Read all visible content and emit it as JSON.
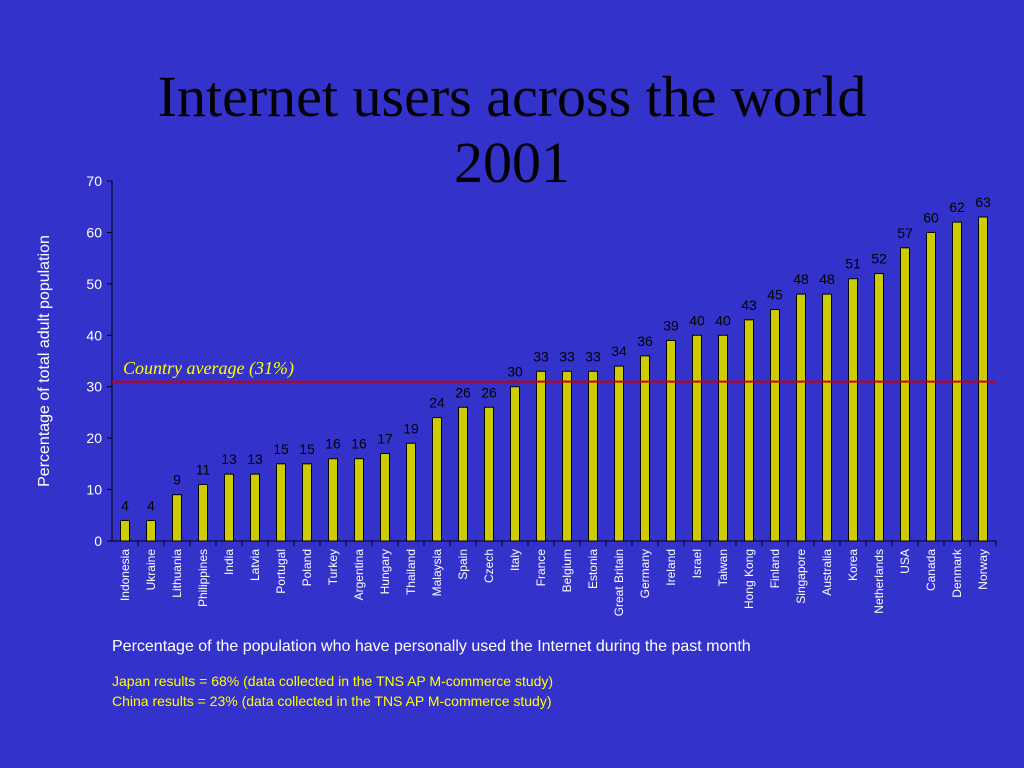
{
  "title": {
    "line1": "Internet users across the world",
    "line2": "2001"
  },
  "colors": {
    "background": "#3333cc",
    "bar": "#cccc00",
    "avg_line": "#cc0000",
    "avg_label": "#ffff00",
    "text": "#ffffff"
  },
  "chart_data": {
    "type": "bar",
    "title": "Internet users across the world 2001",
    "ylabel": "Percentage of total adult population",
    "xlabel": "",
    "ylim": [
      0,
      70
    ],
    "yticks": [
      0,
      10,
      20,
      30,
      40,
      50,
      60,
      70
    ],
    "grid": false,
    "categories": [
      "Indonesia",
      "Ukraine",
      "Lithuania",
      "Philippines",
      "India",
      "Latvia",
      "Portugal",
      "Poland",
      "Turkey",
      "Argentina",
      "Hungary",
      "Thailand",
      "Malaysia",
      "Spain",
      "Czech",
      "Italy",
      "France",
      "Belgium",
      "Estonia",
      "Great Britain",
      "Germany",
      "Ireland",
      "Israel",
      "Taiwan",
      "Hong Kong",
      "Finland",
      "Singapore",
      "Australia",
      "Korea",
      "Netherlands",
      "USA",
      "Canada",
      "Denmark",
      "Norway"
    ],
    "values": [
      4,
      4,
      9,
      11,
      13,
      13,
      15,
      15,
      16,
      16,
      17,
      19,
      24,
      26,
      26,
      30,
      33,
      33,
      33,
      34,
      36,
      39,
      40,
      40,
      43,
      45,
      48,
      48,
      51,
      52,
      57,
      60,
      62,
      63
    ],
    "reference_line": {
      "value": 31,
      "label": "Country average (31%)"
    }
  },
  "caption": "Percentage of the population who have personally used the Internet during the past month",
  "notes": [
    "Japan results = 68% (data collected in the TNS AP M-commerce study)",
    "China results = 23% (data collected in the TNS AP M-commerce study)"
  ]
}
